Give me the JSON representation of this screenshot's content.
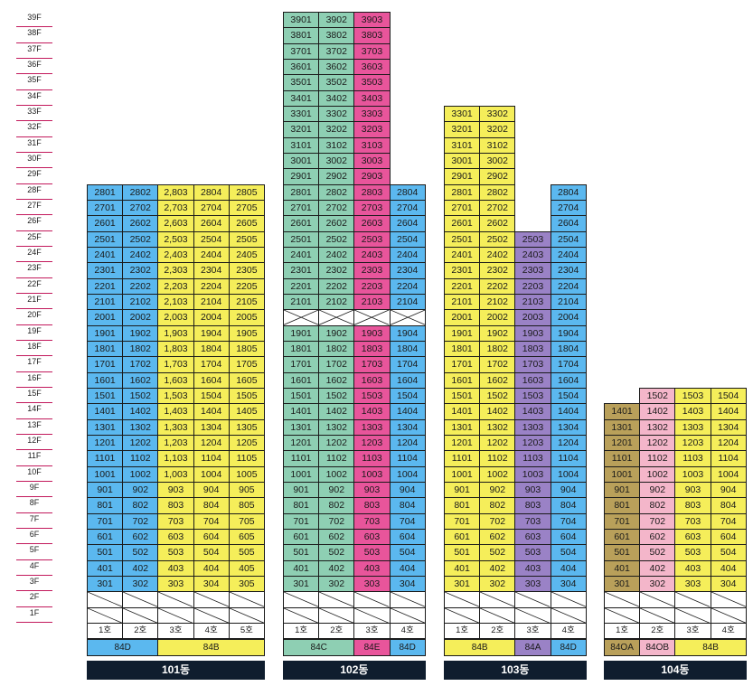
{
  "floor_labels": [
    "39F",
    "38F",
    "37F",
    "36F",
    "35F",
    "34F",
    "33F",
    "32F",
    "31F",
    "30F",
    "29F",
    "28F",
    "27F",
    "26F",
    "25F",
    "24F",
    "23F",
    "22F",
    "21F",
    "20F",
    "19F",
    "18F",
    "17F",
    "16F",
    "15F",
    "14F",
    "13F",
    "12F",
    "11F",
    "10F",
    "9F",
    "8F",
    "7F",
    "6F",
    "5F",
    "4F",
    "3F",
    "2F",
    "1F"
  ],
  "colors": {
    "84D": "#5bb8ef",
    "84B": "#f5ee5a",
    "84C": "#8ecfb3",
    "84E": "#e8559b",
    "84A": "#9a82c6",
    "84OA": "#b9a05a",
    "84OB": "#f4b6ca"
  },
  "buildings": [
    {
      "name": "101동",
      "lines": [
        {
          "label": "1호",
          "type": "84D",
          "max": 28
        },
        {
          "label": "2호",
          "type": "84D",
          "max": 28
        },
        {
          "label": "3호",
          "type": "84B",
          "max": 28,
          "comma": true
        },
        {
          "label": "4호",
          "type": "84B",
          "max": 28
        },
        {
          "label": "5호",
          "type": "84B",
          "max": 28
        }
      ],
      "types": [
        {
          "label": "84D",
          "span": 2
        },
        {
          "label": "84B",
          "span": 3
        }
      ]
    },
    {
      "name": "102동",
      "lines": [
        {
          "label": "1호",
          "type": "84C",
          "max": 39,
          "skip": [
            20
          ]
        },
        {
          "label": "2호",
          "type": "84C",
          "max": 39,
          "skip": [
            20
          ]
        },
        {
          "label": "3호",
          "type": "84E",
          "max": 39,
          "skip": [
            20
          ]
        },
        {
          "label": "4호",
          "type": "84D",
          "max": 28,
          "skip": [
            20
          ]
        }
      ],
      "types": [
        {
          "label": "84C",
          "span": 2
        },
        {
          "label": "84E",
          "span": 1
        },
        {
          "label": "84D",
          "span": 1
        }
      ]
    },
    {
      "name": "103동",
      "lines": [
        {
          "label": "1호",
          "type": "84B",
          "max": 33
        },
        {
          "label": "2호",
          "type": "84B",
          "max": 33
        },
        {
          "label": "3호",
          "type": "84A",
          "max": 25
        },
        {
          "label": "4호",
          "type": "84D",
          "max": 28
        }
      ],
      "types": [
        {
          "label": "84B",
          "span": 2
        },
        {
          "label": "84A",
          "span": 1
        },
        {
          "label": "84D",
          "span": 1
        }
      ]
    },
    {
      "name": "104동",
      "lines": [
        {
          "label": "1호",
          "type": "84OA",
          "max": 14
        },
        {
          "label": "2호",
          "type": "84OB",
          "max": 15
        },
        {
          "label": "3호",
          "type": "84B",
          "max": 15
        },
        {
          "label": "4호",
          "type": "84B",
          "max": 15
        }
      ],
      "types": [
        {
          "label": "84OA",
          "span": 1
        },
        {
          "label": "84OB",
          "span": 1
        },
        {
          "label": "84B",
          "span": 2
        }
      ]
    }
  ]
}
